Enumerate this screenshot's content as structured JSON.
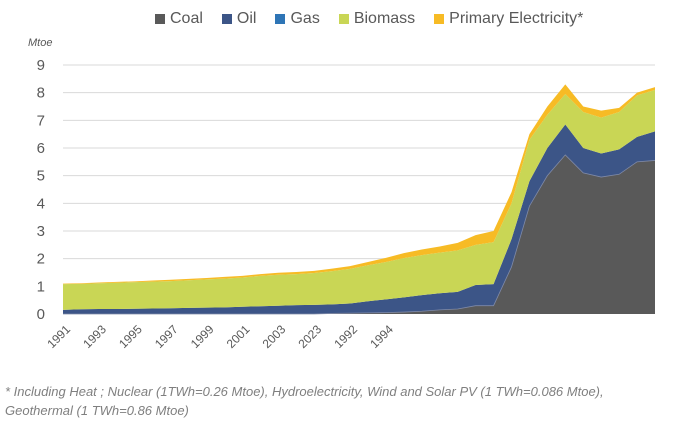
{
  "chart_data": {
    "type": "area",
    "stacked": true,
    "title": "",
    "ylabel": "Mtoe",
    "xlabel": "",
    "ylim": [
      0,
      9
    ],
    "yticks": [
      0,
      1,
      2,
      3,
      4,
      5,
      6,
      7,
      8,
      9
    ],
    "grid": true,
    "legend_position": "top",
    "x_tick_labels": [
      "1991",
      "1993",
      "1995",
      "1997",
      "1999",
      "2001",
      "2003",
      "2023",
      "1992",
      "1994"
    ],
    "n_points": 34,
    "series": [
      {
        "name": "Coal",
        "color": "#595959",
        "values": [
          0,
          0,
          0,
          0,
          0,
          0,
          0,
          0,
          0,
          0,
          0,
          0,
          0,
          0,
          0,
          0.02,
          0.03,
          0.04,
          0.05,
          0.07,
          0.1,
          0.15,
          0.18,
          0.3,
          0.3,
          1.7,
          3.9,
          5.0,
          5.75,
          5.1,
          4.95,
          5.05,
          5.5,
          5.55
        ]
      },
      {
        "name": "Oil",
        "color": "#3c5587",
        "values": [
          0.15,
          0.17,
          0.18,
          0.18,
          0.19,
          0.2,
          0.21,
          0.22,
          0.23,
          0.24,
          0.26,
          0.28,
          0.3,
          0.32,
          0.33,
          0.33,
          0.35,
          0.42,
          0.48,
          0.53,
          0.58,
          0.6,
          0.62,
          0.75,
          0.78,
          1.0,
          0.9,
          1.0,
          1.1,
          0.9,
          0.85,
          0.9,
          0.9,
          1.05
        ]
      },
      {
        "name": "Gas",
        "color": "#2e75b6",
        "values": [
          0,
          0,
          0,
          0,
          0,
          0,
          0,
          0,
          0,
          0,
          0,
          0,
          0,
          0,
          0,
          0,
          0,
          0,
          0,
          0,
          0,
          0,
          0,
          0,
          0,
          0,
          0,
          0,
          0,
          0,
          0,
          0,
          0,
          0
        ]
      },
      {
        "name": "Biomass",
        "color": "#c9d655",
        "values": [
          0.93,
          0.92,
          0.93,
          0.95,
          0.96,
          0.97,
          0.98,
          1.0,
          1.02,
          1.04,
          1.06,
          1.1,
          1.12,
          1.12,
          1.15,
          1.2,
          1.25,
          1.3,
          1.35,
          1.42,
          1.45,
          1.47,
          1.5,
          1.45,
          1.52,
          1.3,
          1.5,
          1.2,
          1.1,
          1.3,
          1.3,
          1.35,
          1.5,
          1.5
        ]
      },
      {
        "name": "Primary Electricity*",
        "color": "#f7bb25",
        "values": [
          0.02,
          0.02,
          0.03,
          0.03,
          0.03,
          0.04,
          0.05,
          0.05,
          0.05,
          0.06,
          0.06,
          0.06,
          0.07,
          0.08,
          0.08,
          0.09,
          0.1,
          0.12,
          0.15,
          0.18,
          0.2,
          0.22,
          0.27,
          0.35,
          0.4,
          0.4,
          0.2,
          0.3,
          0.35,
          0.2,
          0.25,
          0.15,
          0.1,
          0.1
        ]
      }
    ]
  },
  "legend": {
    "items": [
      {
        "label": "Coal",
        "color": "#595959"
      },
      {
        "label": "Oil",
        "color": "#3c5587"
      },
      {
        "label": "Gas",
        "color": "#2e75b6"
      },
      {
        "label": "Biomass",
        "color": "#c9d655"
      },
      {
        "label": "Primary Electricity*",
        "color": "#f7bb25"
      }
    ]
  },
  "unit_label": "Mtoe",
  "footnote": {
    "line1": "* Including Heat ; Nuclear (1TWh=0.26 Mtoe), Hydroelectricity, Wind and Solar PV (1 TWh=0.086 Mtoe),",
    "line2": "Geothermal (1 TWh=0.86 Mtoe)"
  }
}
